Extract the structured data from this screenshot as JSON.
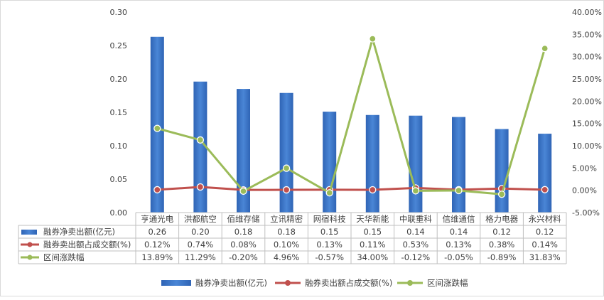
{
  "chart_data": {
    "type": "bar",
    "categories": [
      "亨通光电",
      "洪都航空",
      "佰维存储",
      "立讯精密",
      "网宿科技",
      "天华新能",
      "中联重科",
      "信维通信",
      "格力电器",
      "永兴材料"
    ],
    "series": [
      {
        "name": "融券净卖出额(亿元)",
        "chart_type": "bar",
        "axis": "left",
        "color": "#3a73c4",
        "values": [
          0.263,
          0.196,
          0.185,
          0.179,
          0.151,
          0.146,
          0.145,
          0.143,
          0.125,
          0.118
        ],
        "display": [
          "0.26",
          "0.20",
          "0.18",
          "0.18",
          "0.15",
          "0.15",
          "0.14",
          "0.14",
          "0.12",
          "0.12"
        ]
      },
      {
        "name": "融券卖出额占成交额(%)",
        "chart_type": "line",
        "axis": "right",
        "color": "#c0504d",
        "values": [
          0.12,
          0.74,
          0.08,
          0.1,
          0.13,
          0.11,
          0.53,
          0.13,
          0.38,
          0.14
        ],
        "display": [
          "0.12%",
          "0.74%",
          "0.08%",
          "0.10%",
          "0.13%",
          "0.11%",
          "0.53%",
          "0.13%",
          "0.38%",
          "0.14%"
        ]
      },
      {
        "name": "区间涨跌幅",
        "chart_type": "line",
        "axis": "right",
        "color": "#9bbb59",
        "values": [
          13.89,
          11.29,
          -0.2,
          4.96,
          -0.57,
          34.0,
          -0.12,
          -0.05,
          -0.89,
          31.83
        ],
        "display": [
          "13.89%",
          "11.29%",
          "-0.20%",
          "4.96%",
          "-0.57%",
          "34.00%",
          "-0.12%",
          "-0.05%",
          "-0.89%",
          "31.83%"
        ]
      }
    ],
    "y_left": {
      "min": 0,
      "max": 0.3,
      "ticks": [
        "0.00",
        "0.05",
        "0.10",
        "0.15",
        "0.20",
        "0.25",
        "0.30"
      ]
    },
    "y_right": {
      "min": -5,
      "max": 40,
      "ticks": [
        "-5.00%",
        "0.00%",
        "5.00%",
        "10.00%",
        "15.00%",
        "20.00%",
        "25.00%",
        "30.00%",
        "35.00%",
        "40.00%"
      ]
    },
    "grid": false,
    "data_table": true,
    "legend_position": "bottom"
  }
}
